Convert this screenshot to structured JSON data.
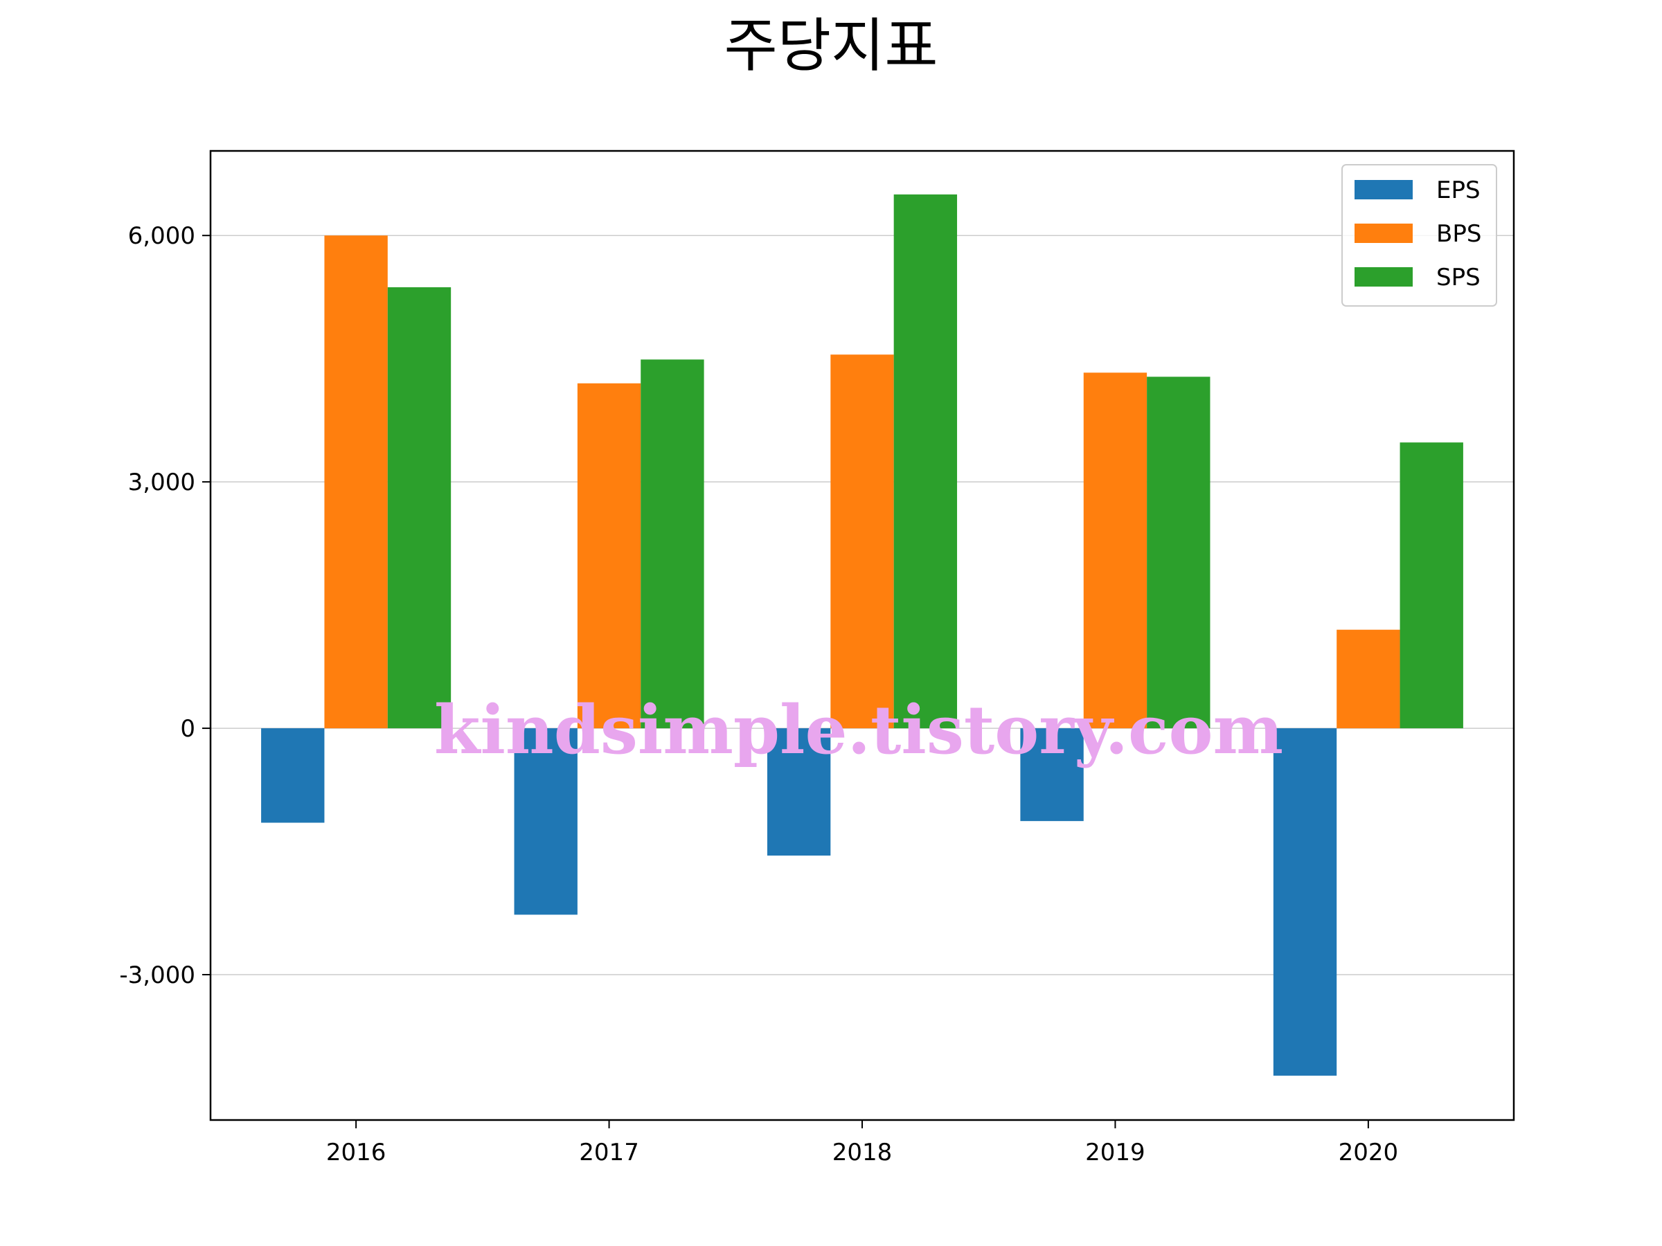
{
  "chart_data": {
    "type": "bar",
    "title": "주당지표",
    "xlabel": "",
    "ylabel": "",
    "categories": [
      "2016",
      "2017",
      "2018",
      "2019",
      "2020"
    ],
    "series": [
      {
        "name": "EPS",
        "values": [
          -1150,
          -2270,
          -1550,
          -1130,
          -4230
        ],
        "color": "#1f77b4"
      },
      {
        "name": "BPS",
        "values": [
          6000,
          4200,
          4550,
          4330,
          1200
        ],
        "color": "#ff7f0e"
      },
      {
        "name": "SPS",
        "values": [
          5370,
          4490,
          6500,
          4280,
          3480
        ],
        "color": "#2ca02c"
      }
    ],
    "ylim": [
      -4770,
      7030
    ],
    "yticks": [
      -3000,
      0,
      3000,
      6000
    ],
    "ytick_labels": [
      "-3,000",
      "0",
      "3,000",
      "6,000"
    ],
    "grid": "horizontal",
    "legend_position": "top-right"
  },
  "watermark": "kindsimple.tistory.com"
}
